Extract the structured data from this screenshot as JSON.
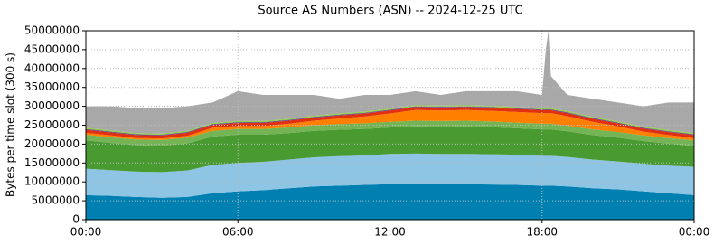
{
  "chart_data": {
    "type": "stacked_area",
    "title": "Source AS Numbers (ASN) -- 2024-12-25 UTC",
    "y_label": "Bytes per time slot (300 s)",
    "x": [
      0,
      1,
      2,
      3,
      4,
      5,
      6,
      7,
      8,
      9,
      10,
      11,
      12,
      13,
      14,
      15,
      16,
      17,
      18,
      18.15,
      18.25,
      18.35,
      19,
      20,
      21,
      22,
      23,
      24
    ],
    "xlim": [
      0,
      24
    ],
    "xticks": [
      {
        "value": 0,
        "label": "00:00"
      },
      {
        "value": 6,
        "label": "06:00"
      },
      {
        "value": 12,
        "label": "12:00"
      },
      {
        "value": 18,
        "label": "18:00"
      },
      {
        "value": 24,
        "label": "00:00"
      }
    ],
    "ylim": [
      0,
      50000000
    ],
    "yticks": [
      0,
      5000000,
      10000000,
      15000000,
      20000000,
      25000000,
      30000000,
      35000000,
      40000000,
      45000000,
      50000000
    ],
    "grid": true,
    "series": [
      {
        "color": "#0080b0",
        "values": [
          6500000,
          6300000,
          6000000,
          5800000,
          6000000,
          7000000,
          7500000,
          7800000,
          8300000,
          8800000,
          9000000,
          9200000,
          9400000,
          9500000,
          9400000,
          9400000,
          9300000,
          9200000,
          9000000,
          9000000,
          9000000,
          9000000,
          8800000,
          8300000,
          8000000,
          7500000,
          7000000,
          6500000
        ]
      },
      {
        "color": "#8ec4e4",
        "values": [
          7000000,
          6800000,
          6700000,
          6800000,
          7000000,
          7500000,
          7500000,
          7500000,
          7600000,
          7700000,
          7800000,
          7800000,
          8000000,
          8000000,
          8000000,
          8000000,
          8000000,
          8000000,
          7900000,
          7900000,
          7900000,
          7900000,
          7800000,
          7600000,
          7400000,
          7300000,
          7300000,
          7500000
        ]
      },
      {
        "color": "#4a9a32",
        "values": [
          7500000,
          7200000,
          7000000,
          7000000,
          7200000,
          7500000,
          7500000,
          7200000,
          7000000,
          7000000,
          7000000,
          7000000,
          7000000,
          7200000,
          7200000,
          7300000,
          7200000,
          7000000,
          7000000,
          7000000,
          7000000,
          7000000,
          6800000,
          6500000,
          6300000,
          6000000,
          5800000,
          5500000
        ]
      },
      {
        "color": "#74b454",
        "values": [
          1500000,
          1500000,
          1500000,
          1500000,
          1500000,
          1500000,
          1500000,
          1500000,
          1500000,
          1500000,
          1500000,
          1500000,
          1500000,
          1500000,
          1500000,
          1500000,
          1500000,
          1500000,
          1500000,
          1500000,
          1500000,
          1500000,
          1500000,
          1500000,
          1500000,
          1500000,
          1500000,
          1500000
        ]
      },
      {
        "color": "#ff8000",
        "values": [
          500000,
          500000,
          400000,
          400000,
          500000,
          800000,
          800000,
          800000,
          1000000,
          1200000,
          1500000,
          1800000,
          2200000,
          2800000,
          2800000,
          2800000,
          2800000,
          2800000,
          2800000,
          2800000,
          2800000,
          2800000,
          2500000,
          2000000,
          1500000,
          1000000,
          800000,
          600000
        ]
      },
      {
        "color": "#e03010",
        "values": [
          800000,
          800000,
          800000,
          800000,
          800000,
          800000,
          800000,
          800000,
          800000,
          800000,
          800000,
          800000,
          800000,
          800000,
          800000,
          800000,
          800000,
          800000,
          800000,
          800000,
          800000,
          800000,
          800000,
          800000,
          800000,
          800000,
          800000,
          800000
        ]
      },
      {
        "color": "#6040a0",
        "values": [
          200000,
          200000,
          200000,
          200000,
          200000,
          200000,
          200000,
          200000,
          200000,
          200000,
          200000,
          200000,
          200000,
          200000,
          200000,
          200000,
          200000,
          200000,
          200000,
          200000,
          200000,
          200000,
          200000,
          200000,
          200000,
          200000,
          200000,
          200000
        ]
      },
      {
        "color": "#90d040",
        "values": [
          300000,
          300000,
          300000,
          300000,
          300000,
          300000,
          300000,
          300000,
          300000,
          300000,
          300000,
          300000,
          300000,
          300000,
          300000,
          300000,
          300000,
          300000,
          300000,
          300000,
          300000,
          300000,
          300000,
          300000,
          300000,
          300000,
          300000,
          300000
        ]
      },
      {
        "color": "#a8a8a8",
        "values": [
          5700000,
          6400000,
          6600000,
          6700000,
          6500000,
          5400000,
          7900000,
          6900000,
          6300000,
          5500000,
          3900000,
          4400000,
          3600000,
          3700000,
          2800000,
          3700000,
          3900000,
          4200000,
          3500000,
          15500000,
          20500000,
          8500000,
          4300000,
          4800000,
          5000000,
          5400000,
          7300000,
          8100000
        ]
      }
    ]
  }
}
